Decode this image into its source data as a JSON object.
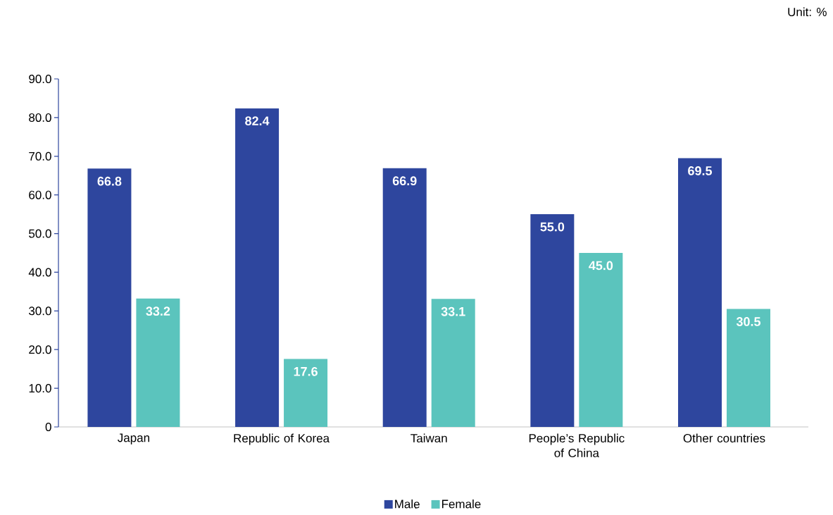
{
  "chart_data": {
    "type": "bar",
    "categories": [
      "Japan",
      "Republic of Korea",
      "Taiwan",
      "People’s Republic of China",
      "Other countries"
    ],
    "series": [
      {
        "name": "Male",
        "color": "#2e469e",
        "values": [
          66.8,
          82.4,
          66.9,
          55.0,
          69.5
        ],
        "value_labels": [
          "66.8",
          "82.4",
          "66.9",
          "55.0",
          "69.5"
        ]
      },
      {
        "name": "Female",
        "color": "#5bc4bd",
        "values": [
          33.2,
          17.6,
          33.1,
          45.0,
          30.5
        ],
        "value_labels": [
          "33.2",
          "17.6",
          "33.1",
          "45.0",
          "30.5"
        ]
      }
    ],
    "ylim": [
      0,
      90
    ],
    "yticks": [
      0,
      {
        "value": 10,
        "label": "10.0"
      },
      {
        "value": 20,
        "label": "20.0"
      },
      {
        "value": 30,
        "label": "30.0"
      },
      {
        "value": 40,
        "label": "40.0"
      },
      {
        "value": 50,
        "label": "50.0"
      },
      {
        "value": 60,
        "label": "60.0"
      },
      {
        "value": 70,
        "label": "70.0"
      },
      {
        "value": 80,
        "label": "80.0"
      },
      {
        "value": 90,
        "label": "90.0"
      }
    ],
    "legend": "bottom",
    "grid": false,
    "annotations": [
      "Unit: %"
    ]
  }
}
